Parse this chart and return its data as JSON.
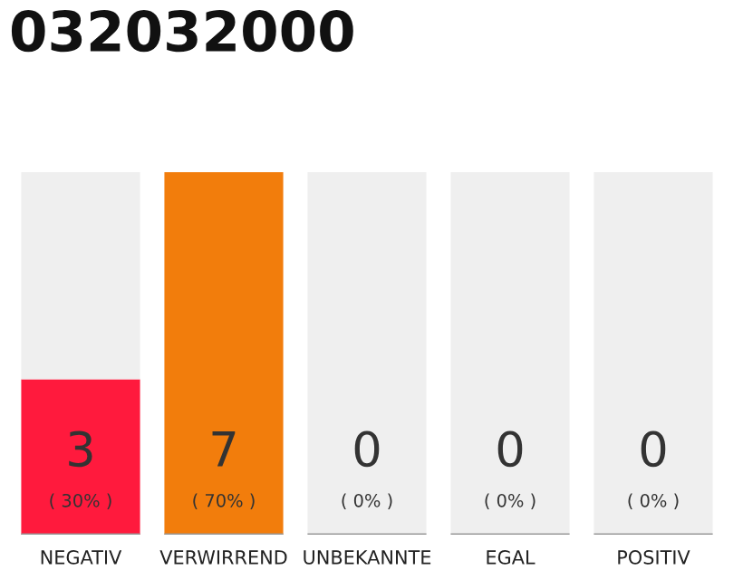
{
  "chart_data": {
    "type": "bar",
    "title": "032032000",
    "categories": [
      "NEGATIV",
      "VERWIRREND",
      "UNBEKANNTE",
      "EGAL",
      "POSITIV"
    ],
    "stacked": true,
    "series": [
      {
        "colors": [
          "#ff1a3d",
          "#f27d0c",
          "#efefef",
          "#efefef",
          "#efefef"
        ],
        "values": [
          30,
          70,
          0,
          0,
          0
        ],
        "value_labels": [
          "( 30% )",
          "( 70% )",
          null,
          null,
          null
        ]
      },
      {
        "color": "#efefef",
        "values": [
          40,
          0,
          70,
          70,
          70
        ]
      }
    ],
    "annotations": [
      "3",
      "7",
      "0",
      "0",
      "0",
      "( 0% )",
      "( 0% )",
      "( 0% )"
    ],
    "legend": false
  }
}
